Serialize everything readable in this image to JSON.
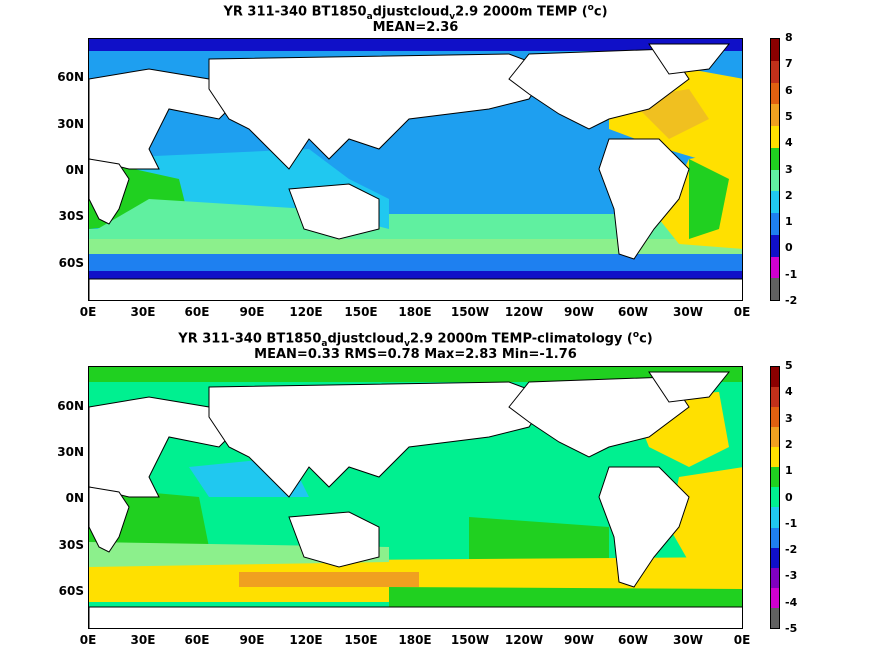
{
  "panel1": {
    "title": "YR 311-340 BT1850",
    "title_sub1": "a",
    "title_mid": "djustcloud",
    "title_sub2": "v",
    "title_tail": "2.9 2000m TEMP (",
    "title_sup": "o",
    "title_end": "c)",
    "stats": "MEAN=2.36",
    "colorbar_labels": [
      "8",
      "7",
      "6",
      "5",
      "4",
      "3",
      "2",
      "1",
      "0",
      "-1",
      "-2"
    ]
  },
  "panel2": {
    "title": "YR 311-340 BT1850",
    "title_sub1": "a",
    "title_mid": "djustcloud",
    "title_sub2": "v",
    "title_tail": "2.9 2000m TEMP-climatology (",
    "title_sup": "o",
    "title_end": "c)",
    "stats": "MEAN=0.33   RMS=0.78   Max=2.83   Min=-1.76",
    "colorbar_labels": [
      "5",
      "4",
      "3",
      "2",
      "1",
      "0",
      "-1",
      "-2",
      "-3",
      "-4",
      "-5"
    ]
  },
  "axes": {
    "lat_labels": [
      "60N",
      "30N",
      "0N",
      "30S",
      "60S"
    ],
    "lon_labels": [
      "0E",
      "30E",
      "60E",
      "90E",
      "120E",
      "150E",
      "180E",
      "150W",
      "120W",
      "90W",
      "60W",
      "30W",
      "0E"
    ]
  },
  "colors": {
    "bar1": [
      "#8b0000",
      "#c0301a",
      "#e06010",
      "#f0a020",
      "#ffe000",
      "#20d020",
      "#60f0a0",
      "#20c8f0",
      "#1e80f0",
      "#1010c8",
      "#d000d0",
      "#606060"
    ],
    "bar2": [
      "#8b0000",
      "#c0301a",
      "#e06010",
      "#f0a020",
      "#ffe000",
      "#20d020",
      "#00f090",
      "#20c8f0",
      "#1e80f0",
      "#1010c8",
      "#8000c0",
      "#d000d0",
      "#606060"
    ]
  }
}
